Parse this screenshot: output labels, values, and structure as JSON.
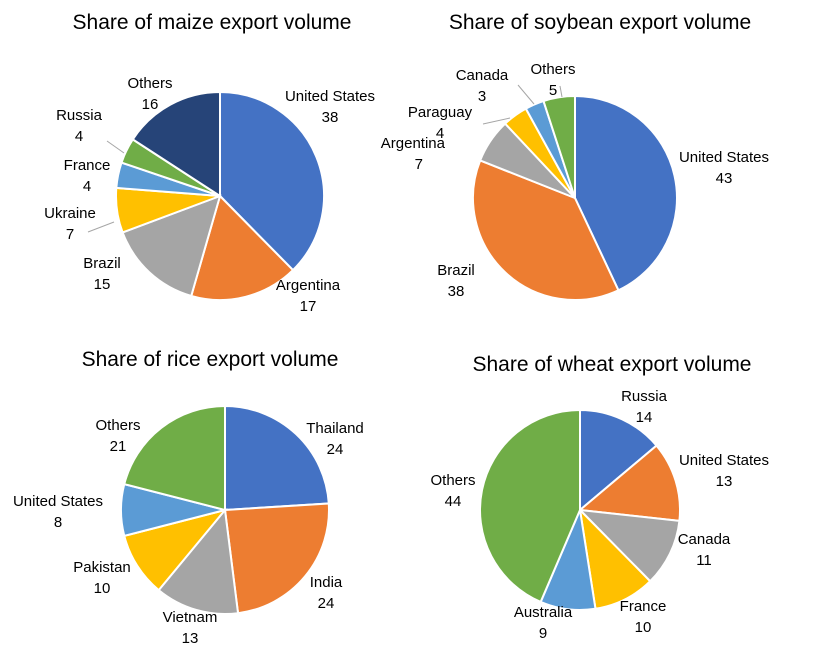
{
  "chart_data": [
    {
      "type": "pie",
      "title": "Share of maize export volume",
      "categories": [
        "United States",
        "Argentina",
        "Brazil",
        "Ukraine",
        "France",
        "Russia",
        "Others"
      ],
      "values": [
        38,
        17,
        15,
        7,
        4,
        4,
        16
      ],
      "colors": [
        "#4472c4",
        "#ed7d31",
        "#a5a5a5",
        "#ffc000",
        "#5b9bd5",
        "#70ad47",
        "#264478"
      ]
    },
    {
      "type": "pie",
      "title": "Share of soybean export volume",
      "categories": [
        "United States",
        "Brazil",
        "Argentina",
        "Paraguay",
        "Canada",
        "Others"
      ],
      "values": [
        43,
        38,
        7,
        4,
        3,
        5
      ],
      "colors": [
        "#4472c4",
        "#ed7d31",
        "#a5a5a5",
        "#ffc000",
        "#5b9bd5",
        "#70ad47"
      ]
    },
    {
      "type": "pie",
      "title": "Share of rice export volume",
      "categories": [
        "Thailand",
        "India",
        "Vietnam",
        "Pakistan",
        "United States",
        "Others"
      ],
      "values": [
        24,
        24,
        13,
        10,
        8,
        21
      ],
      "colors": [
        "#4472c4",
        "#ed7d31",
        "#a5a5a5",
        "#ffc000",
        "#5b9bd5",
        "#70ad47"
      ]
    },
    {
      "type": "pie",
      "title": "Share of wheat export volume",
      "categories": [
        "Russia",
        "United States",
        "Canada",
        "France",
        "Australia",
        "Others"
      ],
      "values": [
        14,
        13,
        11,
        10,
        9,
        44
      ],
      "colors": [
        "#4472c4",
        "#ed7d31",
        "#a5a5a5",
        "#ffc000",
        "#5b9bd5",
        "#70ad47"
      ]
    }
  ]
}
